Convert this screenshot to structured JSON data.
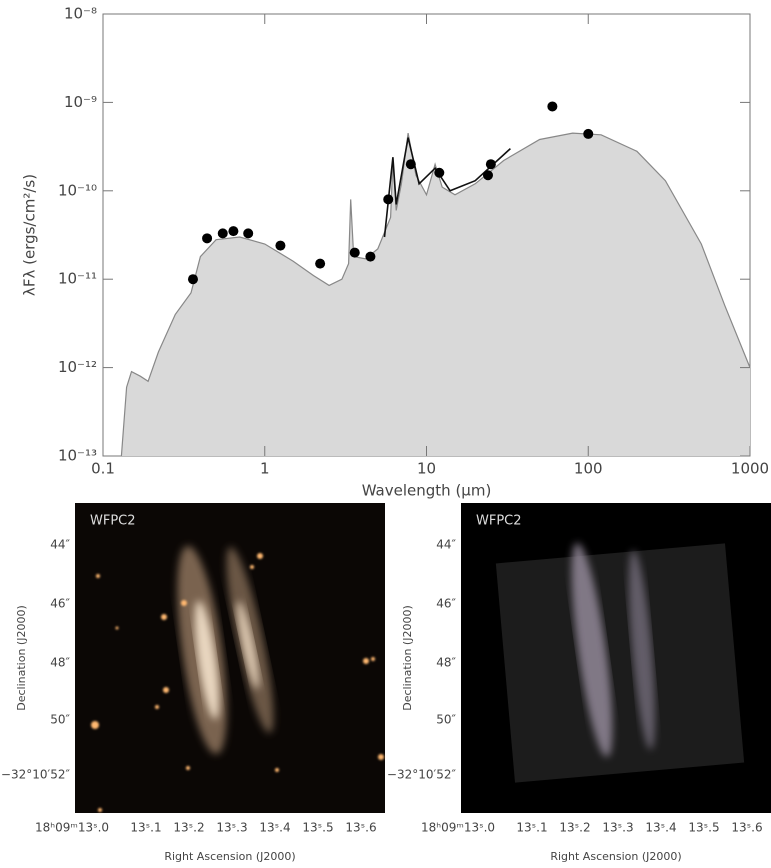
{
  "chart_data": {
    "type": "sed",
    "xlabel": "Wavelength (μm)",
    "ylabel": "λFλ (ergs/cm²/s)",
    "xlog": true,
    "ylog": true,
    "xlim": [
      0.1,
      1000
    ],
    "ylim": [
      1e-13,
      1e-08
    ],
    "xticks": [
      0.1,
      1,
      10,
      100,
      1000
    ],
    "yticks": [
      {
        "value": 1e-13,
        "label": "10⁻¹³"
      },
      {
        "value": 1e-12,
        "label": "10⁻¹²"
      },
      {
        "value": 1e-11,
        "label": "10⁻¹¹"
      },
      {
        "value": 1e-10,
        "label": "10⁻¹⁰"
      },
      {
        "value": 1e-09,
        "label": "10⁻⁹"
      },
      {
        "value": 1e-08,
        "label": "10⁻⁸"
      }
    ],
    "series": [
      {
        "type": "area",
        "color": "#d9d9d9",
        "stroke": "#888888",
        "x": [
          0.13,
          0.14,
          0.15,
          0.17,
          0.19,
          0.22,
          0.28,
          0.35,
          0.4,
          0.5,
          0.7,
          1.0,
          1.5,
          2.0,
          2.5,
          3.0,
          3.3,
          3.4,
          3.55,
          4.2,
          5.0,
          6.0,
          6.2,
          6.5,
          7.0,
          7.7,
          8.6,
          10,
          11.3,
          12.5,
          15,
          20,
          30,
          50,
          80,
          120,
          200,
          300,
          500,
          700,
          1000
        ],
        "values": [
          1e-13,
          6e-13,
          9e-13,
          8e-13,
          7e-13,
          1.5e-12,
          4e-12,
          7e-12,
          1.8e-11,
          2.8e-11,
          3e-11,
          2.5e-11,
          1.6e-11,
          1.1e-11,
          8.5e-12,
          1e-11,
          1.5e-11,
          8e-11,
          1.8e-11,
          1.7e-11,
          2.2e-11,
          5e-11,
          2.2e-10,
          6e-11,
          1.2e-10,
          4.5e-10,
          1.5e-10,
          9e-11,
          2e-10,
          1.1e-10,
          9e-11,
          1.2e-10,
          2.2e-10,
          3.8e-10,
          4.5e-10,
          4.3e-10,
          2.8e-10,
          1.3e-10,
          2.5e-11,
          5e-12,
          1e-12
        ]
      },
      {
        "type": "line",
        "color": "#111111",
        "x": [
          5.5,
          6.2,
          6.5,
          7.7,
          9,
          11.3,
          14,
          20,
          33
        ],
        "values": [
          3e-11,
          2.4e-10,
          7e-11,
          4e-10,
          1.2e-10,
          1.8e-10,
          1e-10,
          1.3e-10,
          3e-10
        ]
      },
      {
        "type": "scatter",
        "color": "#000000",
        "x": [
          0.36,
          0.44,
          0.55,
          0.64,
          0.79,
          1.25,
          2.2,
          3.6,
          4.5,
          5.8,
          8.0,
          12,
          24,
          25,
          60,
          100
        ],
        "values": [
          1e-11,
          2.9e-11,
          3.3e-11,
          3.5e-11,
          3.3e-11,
          2.4e-11,
          1.5e-11,
          2e-11,
          1.8e-11,
          8e-11,
          2e-10,
          1.6e-10,
          1.5e-10,
          2e-10,
          9e-10,
          4.4e-10
        ]
      }
    ]
  },
  "images": [
    {
      "label": "WFPC2",
      "ylabel": "Declination (J2000)",
      "xlabel": "Right Ascension (J2000)",
      "yticks": [
        "44″",
        "46″",
        "48″",
        "50″",
        "−32°10′52″"
      ],
      "xticks": [
        "18ʰ09ᵐ13ˢ.0",
        "13ˢ.1",
        "13ˢ.2",
        "13ˢ.3",
        "13ˢ.4",
        "13ˢ.5",
        "13ˢ.6"
      ]
    },
    {
      "label": "WFPC2",
      "ylabel": "Declination (J2000)",
      "xlabel": "Right Ascension (J2000)",
      "yticks": [
        "44″",
        "46″",
        "48″",
        "50″",
        "−32°10′52″"
      ],
      "xticks": [
        "18ʰ09ᵐ13ˢ.0",
        "13ˢ.1",
        "13ˢ.2",
        "13ˢ.3",
        "13ˢ.4",
        "13ˢ.5",
        "13ˢ.6"
      ]
    }
  ]
}
